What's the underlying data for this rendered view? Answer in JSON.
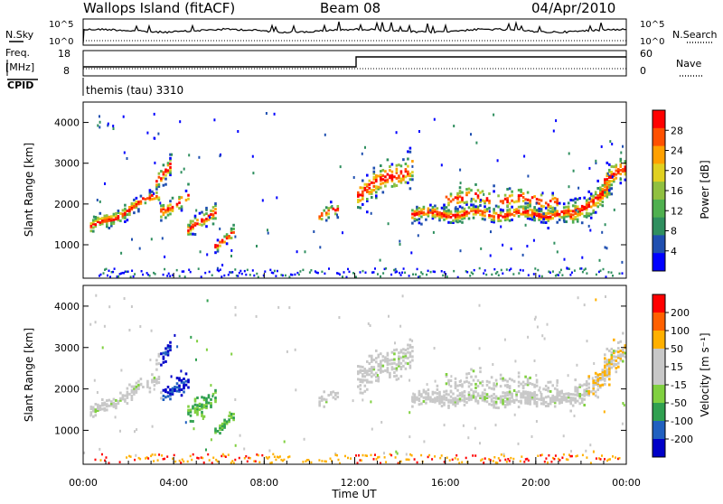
{
  "header": {
    "site": "Wallops Island (fitACF)",
    "beam": "Beam 08",
    "date": "04/Apr/2010"
  },
  "top_panels": {
    "nsky_label": "N.Sky",
    "nsearch_label": "N.Search",
    "freq_label_line1": "Freq.",
    "freq_label_line2": "[MHz]",
    "nave_label": "Nave",
    "cpid_label": "CPID",
    "cpid_value": "themis (tau) 3310",
    "noise_ticks_left": [
      "10^5",
      "10^0"
    ],
    "noise_ticks_right": [
      "10^5",
      "10^0"
    ],
    "freq_ticks": [
      "18",
      "8"
    ],
    "nave_ticks": [
      "60",
      "0"
    ]
  },
  "chart_data": [
    {
      "type": "heatmap",
      "panel": "power",
      "ylabel": "Slant Range [km]",
      "y_ticks": [
        "4000",
        "3000",
        "2000",
        "1000"
      ],
      "ylim": [
        180,
        4500
      ],
      "xlim": [
        0,
        24
      ],
      "colorbar": {
        "label": "Power [dB]",
        "ticks": [
          "28",
          "24",
          "20",
          "16",
          "12",
          "8",
          "4"
        ],
        "colors": [
          "#0000ff",
          "#1f4fb0",
          "#2f8f5f",
          "#4fb04f",
          "#90c040",
          "#e0d020",
          "#ffa000",
          "#ff5000",
          "#ff0000"
        ]
      }
    },
    {
      "type": "heatmap",
      "panel": "velocity",
      "ylabel": "Slant Range [km]",
      "y_ticks": [
        "4000",
        "3000",
        "2000",
        "1000"
      ],
      "ylim": [
        180,
        4500
      ],
      "xlim": [
        0,
        24
      ],
      "xlabel": "Time UT",
      "x_ticks": [
        "00:00",
        "04:00",
        "08:00",
        "12:00",
        "16:00",
        "20:00",
        "00:00"
      ],
      "colorbar": {
        "label": "Velocity [m s⁻¹]",
        "ticks": [
          "200",
          "100",
          "50",
          "15",
          "-15",
          "-50",
          "-100",
          "-200"
        ],
        "colors": [
          "#0000c8",
          "#2060c0",
          "#30a050",
          "#80d040",
          "#c8c8c8",
          "#c8c8c8",
          "#ffb000",
          "#ff6000",
          "#ff0000"
        ]
      }
    }
  ]
}
